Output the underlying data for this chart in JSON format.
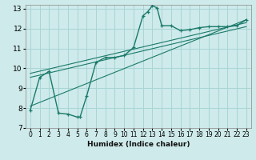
{
  "title": "",
  "xlabel": "Humidex (Indice chaleur)",
  "ylabel": "",
  "background_color": "#ceeaea",
  "grid_color": "#a8d5d5",
  "line_color": "#1a7a6a",
  "xlim": [
    -0.5,
    23.5
  ],
  "ylim": [
    7,
    13.2
  ],
  "yticks": [
    7,
    8,
    9,
    10,
    11,
    12,
    13
  ],
  "xticks": [
    0,
    1,
    2,
    3,
    4,
    5,
    6,
    7,
    8,
    9,
    10,
    11,
    12,
    13,
    14,
    15,
    16,
    17,
    18,
    19,
    20,
    21,
    22,
    23
  ],
  "series1_x": [
    0,
    1,
    2,
    3,
    4,
    5,
    5.3,
    6,
    7,
    8,
    9,
    10,
    11,
    12,
    12.5,
    13,
    13.5,
    14,
    15,
    16,
    17,
    18,
    19,
    20,
    21,
    22,
    23
  ],
  "series1_y": [
    7.9,
    9.55,
    9.85,
    7.75,
    7.7,
    7.55,
    7.55,
    8.6,
    10.3,
    10.55,
    10.55,
    10.65,
    11.05,
    12.65,
    12.85,
    13.15,
    13.05,
    12.15,
    12.15,
    11.9,
    11.95,
    12.05,
    12.1,
    12.1,
    12.1,
    12.15,
    12.45
  ],
  "series2_x": [
    0,
    23
  ],
  "series2_y": [
    9.55,
    12.1
  ],
  "series3_x": [
    0,
    23
  ],
  "series3_y": [
    9.75,
    12.3
  ],
  "series4_x": [
    0,
    23
  ],
  "series4_y": [
    8.1,
    12.45
  ]
}
